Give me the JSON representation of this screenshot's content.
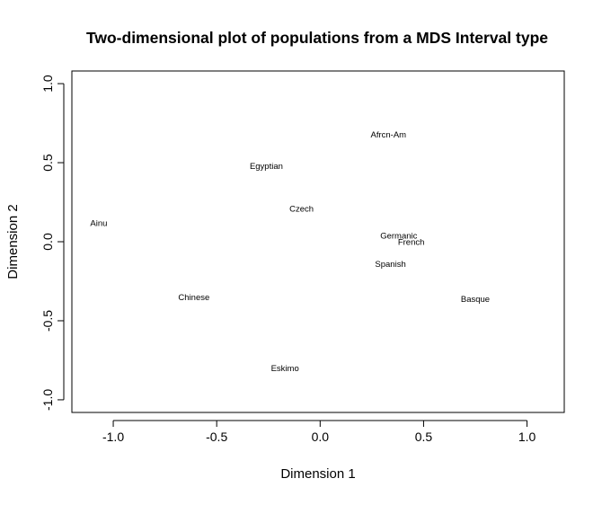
{
  "chart_data": {
    "type": "scatter",
    "title": "Two-dimensional plot of populations from a MDS Interval type",
    "xlabel": "Dimension 1",
    "ylabel": "Dimension 2",
    "xlim": [
      -1.2,
      1.18
    ],
    "ylim": [
      -1.08,
      1.08
    ],
    "xticks": [
      -1.0,
      -0.5,
      0.0,
      0.5,
      1.0
    ],
    "xtick_labels": [
      "-1.0",
      "-0.5",
      "0.0",
      "0.5",
      "1.0"
    ],
    "yticks": [
      -1.0,
      -0.5,
      0.0,
      0.5,
      1.0
    ],
    "ytick_labels": [
      "-1.0",
      "-0.5",
      "0.0",
      "0.5",
      "1.0"
    ],
    "grid": false,
    "legend": "none",
    "points": [
      {
        "label": "Afrcn-Am",
        "x": 0.33,
        "y": 0.68
      },
      {
        "label": "Egyptian",
        "x": -0.26,
        "y": 0.48
      },
      {
        "label": "Czech",
        "x": -0.09,
        "y": 0.21
      },
      {
        "label": "Ainu",
        "x": -1.07,
        "y": 0.12
      },
      {
        "label": "Germanic",
        "x": 0.38,
        "y": 0.04
      },
      {
        "label": "French",
        "x": 0.44,
        "y": 0.0
      },
      {
        "label": "Spanish",
        "x": 0.34,
        "y": -0.14
      },
      {
        "label": "Chinese",
        "x": -0.61,
        "y": -0.35
      },
      {
        "label": "Basque",
        "x": 0.75,
        "y": -0.36
      },
      {
        "label": "Eskimo",
        "x": -0.17,
        "y": -0.8
      }
    ]
  }
}
